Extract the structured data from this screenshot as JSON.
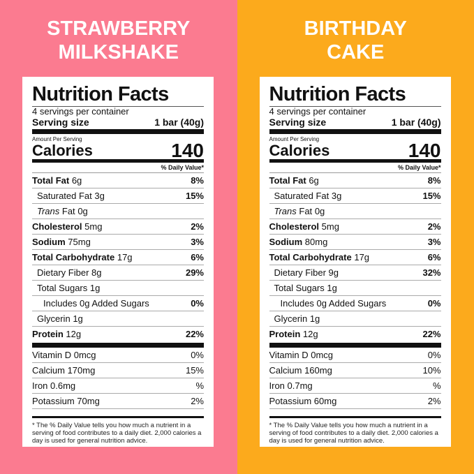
{
  "panels": [
    {
      "background": "#fb7b90",
      "title": [
        "STRAWBERRY",
        "MILKSHAKE"
      ],
      "label": {
        "heading": "Nutrition Facts",
        "servings": "4 servings per container",
        "serving_size_label": "Serving size",
        "serving_size_value": "1 bar (40g)",
        "amount_per_serving": "Amount Per Serving",
        "calories_label": "Calories",
        "calories_value": "140",
        "dv_header": "% Daily Value*",
        "nutrients": [
          {
            "name": "Total Fat",
            "amount": "6g",
            "dv": "8%",
            "bold": true,
            "indent": 0
          },
          {
            "name": "Saturated Fat",
            "amount": "3g",
            "dv": "15%",
            "bold": false,
            "indent": 1
          },
          {
            "italic": "Trans",
            "name": "Fat",
            "amount": "0g",
            "bold": false,
            "indent": 1
          },
          {
            "name": "Cholesterol",
            "amount": "5mg",
            "dv": "2%",
            "bold": true,
            "indent": 0
          },
          {
            "name": "Sodium",
            "amount": "75mg",
            "dv": "3%",
            "bold": true,
            "indent": 0
          },
          {
            "name": "Total Carbohydrate",
            "amount": "17g",
            "dv": "6%",
            "bold": true,
            "indent": 0
          },
          {
            "name": "Dietary Fiber",
            "amount": "8g",
            "dv": "29%",
            "bold": false,
            "indent": 1
          },
          {
            "name": "Total Sugars",
            "amount": "1g",
            "bold": false,
            "indent": 1
          },
          {
            "name": "Includes 0g Added Sugars",
            "dv": "0%",
            "bold": false,
            "indent": 2
          },
          {
            "name": "Glycerin",
            "amount": "1g",
            "bold": false,
            "indent": 1
          },
          {
            "name": "Protein",
            "amount": "12g",
            "dv": "22%",
            "bold": true,
            "indent": 0
          }
        ],
        "vitamins": [
          {
            "name": "Vitamin D 0mcg",
            "dv": "0%"
          },
          {
            "name": "Calcium 170mg",
            "dv": "15%"
          },
          {
            "name": "Iron 0.6mg",
            "dv": "%"
          },
          {
            "name": "Potassium 70mg",
            "dv": "2%"
          }
        ],
        "footnote": "* The % Daily Value tells you how much a nutrient in a serving of food contributes to a daily diet. 2,000 calories a day is used for general nutrition advice."
      }
    },
    {
      "background": "#fcaa1c",
      "title": [
        "BIRTHDAY",
        "CAKE"
      ],
      "label": {
        "heading": "Nutrition Facts",
        "servings": "4 servings per container",
        "serving_size_label": "Serving size",
        "serving_size_value": "1 bar (40g)",
        "amount_per_serving": "Amount Per Serving",
        "calories_label": "Calories",
        "calories_value": "140",
        "dv_header": "% Daily Value*",
        "nutrients": [
          {
            "name": "Total Fat",
            "amount": "6g",
            "dv": "8%",
            "bold": true,
            "indent": 0
          },
          {
            "name": "Saturated Fat",
            "amount": "3g",
            "dv": "15%",
            "bold": false,
            "indent": 1
          },
          {
            "italic": "Trans",
            "name": "Fat",
            "amount": "0g",
            "bold": false,
            "indent": 1
          },
          {
            "name": "Cholesterol",
            "amount": "5mg",
            "dv": "2%",
            "bold": true,
            "indent": 0
          },
          {
            "name": "Sodium",
            "amount": "80mg",
            "dv": "3%",
            "bold": true,
            "indent": 0
          },
          {
            "name": "Total Carbohydrate",
            "amount": "17g",
            "dv": "6%",
            "bold": true,
            "indent": 0
          },
          {
            "name": "Dietary Fiber",
            "amount": "9g",
            "dv": "32%",
            "bold": false,
            "indent": 1
          },
          {
            "name": "Total Sugars",
            "amount": "1g",
            "bold": false,
            "indent": 1
          },
          {
            "name": "Includes 0g Added Sugars",
            "dv": "0%",
            "bold": false,
            "indent": 2
          },
          {
            "name": "Glycerin",
            "amount": "1g",
            "bold": false,
            "indent": 1
          },
          {
            "name": "Protein",
            "amount": "12g",
            "dv": "22%",
            "bold": true,
            "indent": 0
          }
        ],
        "vitamins": [
          {
            "name": "Vitamin D 0mcg",
            "dv": "0%"
          },
          {
            "name": "Calcium 160mg",
            "dv": "10%"
          },
          {
            "name": "Iron 0.7mg",
            "dv": "%"
          },
          {
            "name": "Potassium 60mg",
            "dv": "2%"
          }
        ],
        "footnote": "* The % Daily Value tells you how much a nutrient in a serving of food contributes to a daily diet. 2,000 calories a day is used for general nutrition advice."
      }
    }
  ]
}
